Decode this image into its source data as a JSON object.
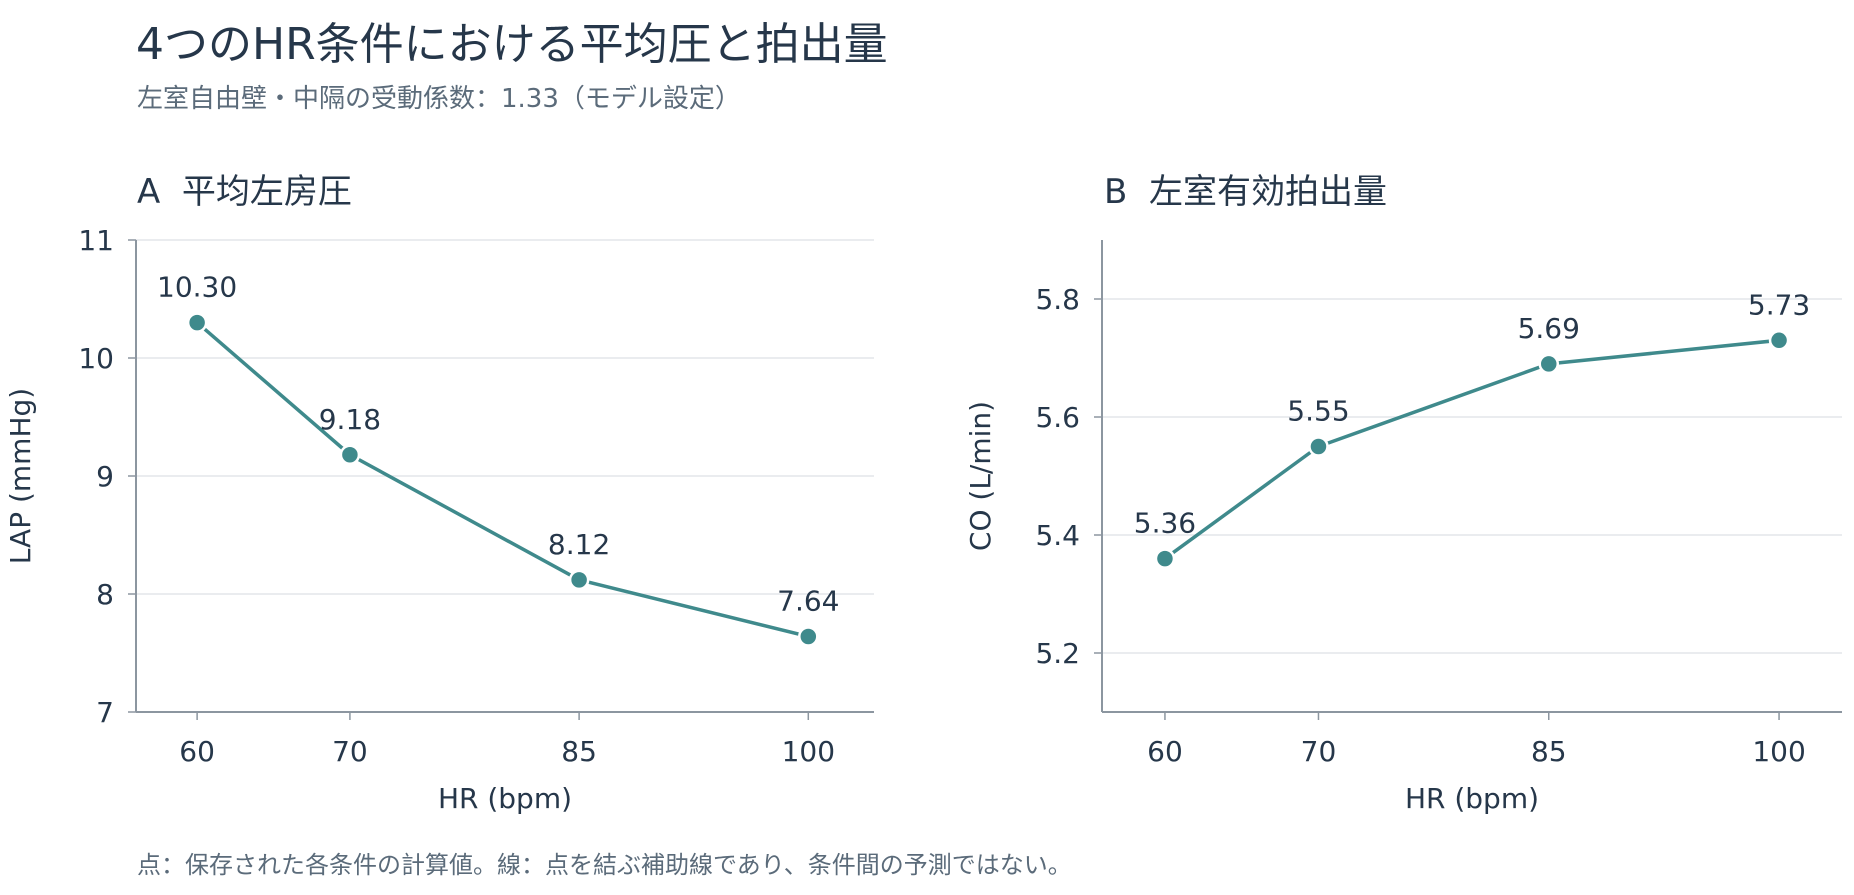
{
  "title": "4つのHR条件における平均圧と拍出量",
  "subtitle": "左室自由壁・中隔の受動係数：1.33（モデル設定）",
  "footnote": "点：保存された各条件の計算値。線：点を結ぶ補助線であり、条件間の予測ではない。",
  "colors": {
    "series": "#3f8a8c",
    "axis": "#8c96a0",
    "grid": "#e3e6ea",
    "text": "#26374a"
  },
  "chart_data": [
    {
      "type": "line",
      "panel": "A",
      "title": "A  平均左房圧",
      "xlabel": "HR (bpm)",
      "ylabel": "LAP (mmHg)",
      "x": [
        60,
        70,
        85,
        100
      ],
      "xticks": [
        "60",
        "70",
        "85",
        "100"
      ],
      "xlim": [
        56,
        104.3
      ],
      "values": [
        10.3,
        9.18,
        8.12,
        7.64
      ],
      "data_labels": [
        "10.30",
        "9.18",
        "8.12",
        "7.64"
      ],
      "ylim": [
        7,
        11
      ],
      "yticks": [
        7,
        8,
        9,
        10,
        11
      ],
      "ytick_labels": [
        "7",
        "8",
        "9",
        "10",
        "11"
      ],
      "grid": true
    },
    {
      "type": "line",
      "panel": "B",
      "title": "B  左室有効拍出量",
      "xlabel": "HR (bpm)",
      "ylabel": "CO (L/min)",
      "x": [
        60,
        70,
        85,
        100
      ],
      "xticks": [
        "60",
        "70",
        "85",
        "100"
      ],
      "xlim": [
        55.9,
        104.1
      ],
      "values": [
        5.36,
        5.55,
        5.69,
        5.73
      ],
      "data_labels": [
        "5.36",
        "5.55",
        "5.69",
        "5.73"
      ],
      "ylim": [
        5.1,
        5.9
      ],
      "yticks": [
        5.2,
        5.4,
        5.6,
        5.8
      ],
      "ytick_labels": [
        "5.2",
        "5.4",
        "5.6",
        "5.8"
      ],
      "grid": true
    }
  ]
}
